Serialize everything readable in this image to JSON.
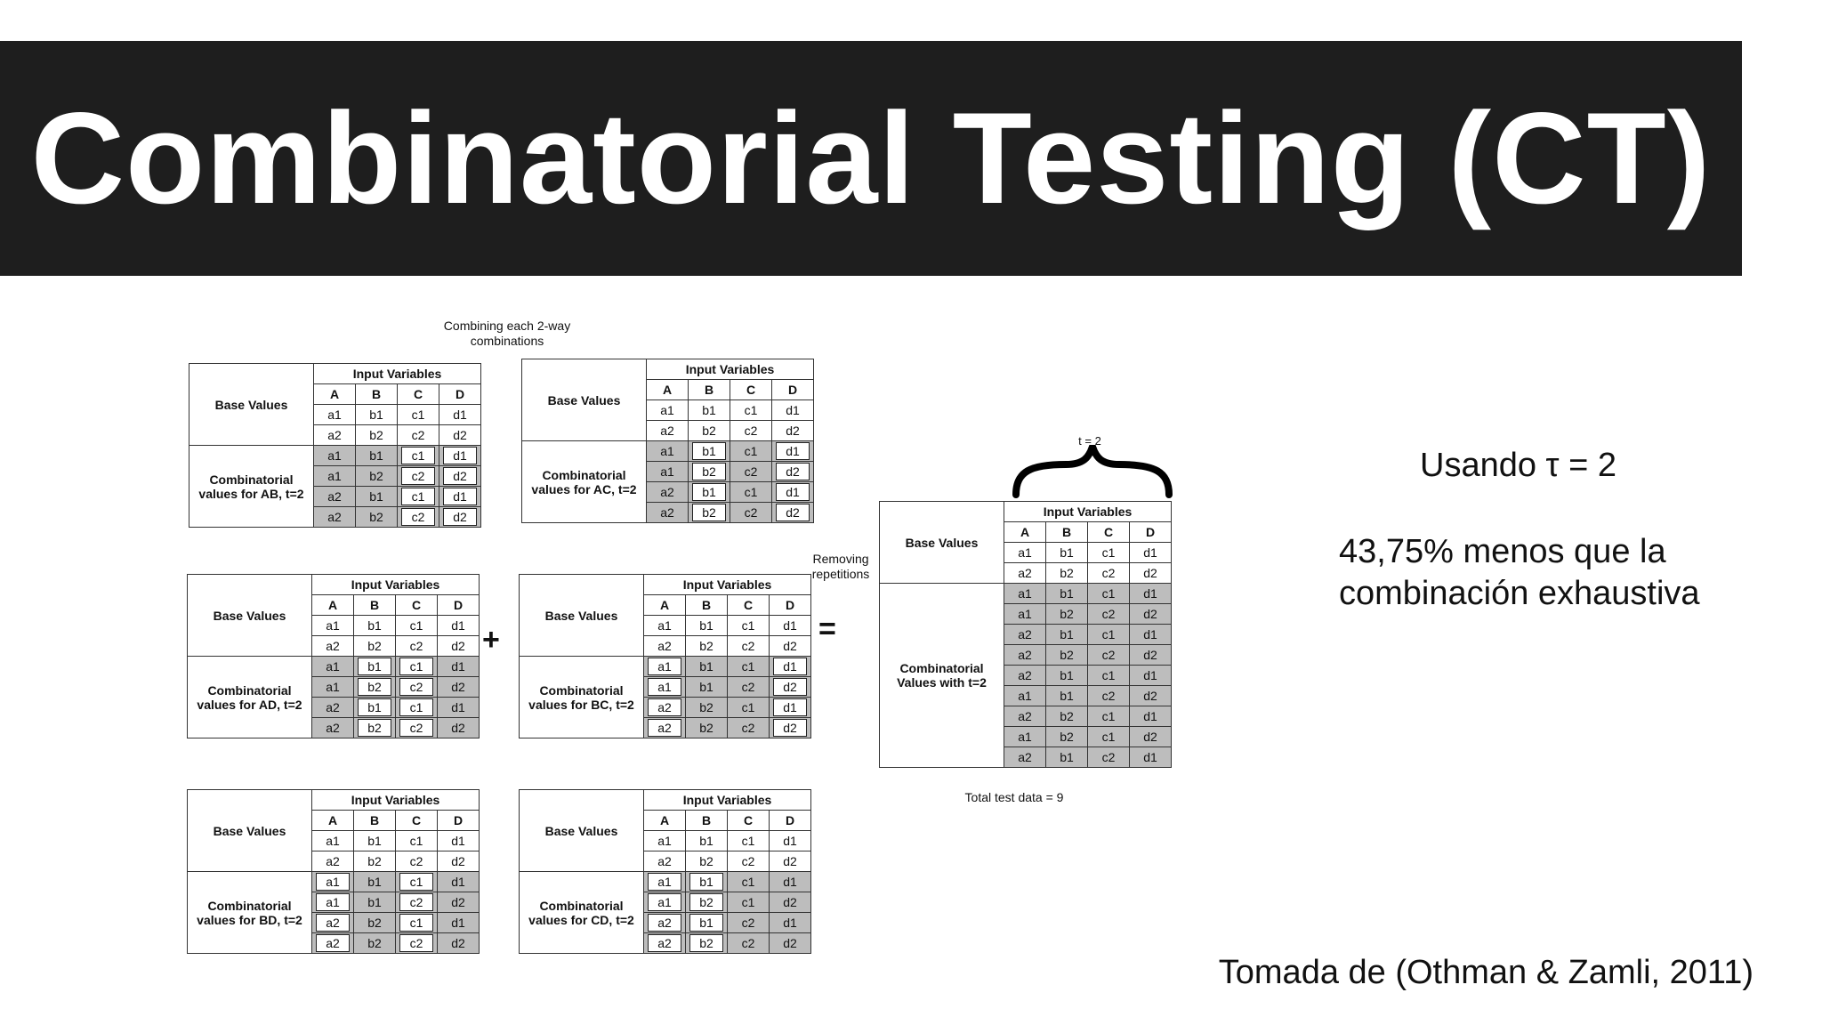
{
  "title": "Combinatorial Testing (CT)",
  "caption_combining": "Combining each 2-way\ncombinations",
  "caption_removing": "Removing\nrepetitions",
  "plus": "+",
  "equals": "=",
  "brace_label": "t = 2",
  "total_label": "Total test data = 9",
  "side": {
    "line1": "Usando τ = 2",
    "line2": "43,75% menos que la",
    "line3": "combinación exhaustiva"
  },
  "credit": "Tomada de (Othman & Zamli, 2011)",
  "common": {
    "base_values": "Base Values",
    "input_variables": "Input Variables",
    "cols": [
      "A",
      "B",
      "C",
      "D"
    ],
    "base_rows": [
      [
        "a1",
        "b1",
        "c1",
        "d1"
      ],
      [
        "a2",
        "b2",
        "c2",
        "d2"
      ]
    ]
  },
  "tables": [
    {
      "label": "Combinatorial values for AB, t=2",
      "rows": [
        [
          "a1",
          "b1",
          "c1",
          "d1"
        ],
        [
          "a1",
          "b2",
          "c2",
          "d2"
        ],
        [
          "a2",
          "b1",
          "c1",
          "d1"
        ],
        [
          "a2",
          "b2",
          "c2",
          "d2"
        ]
      ],
      "boxed": [
        2,
        3
      ]
    },
    {
      "label": "Combinatorial values for AC, t=2",
      "rows": [
        [
          "a1",
          "b1",
          "c1",
          "d1"
        ],
        [
          "a1",
          "b2",
          "c2",
          "d2"
        ],
        [
          "a2",
          "b1",
          "c1",
          "d1"
        ],
        [
          "a2",
          "b2",
          "c2",
          "d2"
        ]
      ],
      "boxed": [
        1,
        3
      ]
    },
    {
      "label": "Combinatorial values for AD, t=2",
      "rows": [
        [
          "a1",
          "b1",
          "c1",
          "d1"
        ],
        [
          "a1",
          "b2",
          "c2",
          "d2"
        ],
        [
          "a2",
          "b1",
          "c1",
          "d1"
        ],
        [
          "a2",
          "b2",
          "c2",
          "d2"
        ]
      ],
      "boxed": [
        1,
        2
      ]
    },
    {
      "label": "Combinatorial values for BC, t=2",
      "rows": [
        [
          "a1",
          "b1",
          "c1",
          "d1"
        ],
        [
          "a1",
          "b1",
          "c2",
          "d2"
        ],
        [
          "a2",
          "b2",
          "c1",
          "d1"
        ],
        [
          "a2",
          "b2",
          "c2",
          "d2"
        ]
      ],
      "boxed": [
        0,
        3
      ]
    },
    {
      "label": "Combinatorial values for BD, t=2",
      "rows": [
        [
          "a1",
          "b1",
          "c1",
          "d1"
        ],
        [
          "a1",
          "b1",
          "c2",
          "d2"
        ],
        [
          "a2",
          "b2",
          "c1",
          "d1"
        ],
        [
          "a2",
          "b2",
          "c2",
          "d2"
        ]
      ],
      "boxed": [
        0,
        2
      ]
    },
    {
      "label": "Combinatorial values for CD, t=2",
      "rows": [
        [
          "a1",
          "b1",
          "c1",
          "d1"
        ],
        [
          "a1",
          "b2",
          "c1",
          "d2"
        ],
        [
          "a2",
          "b1",
          "c2",
          "d1"
        ],
        [
          "a2",
          "b2",
          "c2",
          "d2"
        ]
      ],
      "boxed": [
        0,
        1
      ]
    },
    {
      "label": "Combinatorial Values with t=2",
      "rows": [
        [
          "a1",
          "b1",
          "c1",
          "d1"
        ],
        [
          "a1",
          "b2",
          "c2",
          "d2"
        ],
        [
          "a2",
          "b1",
          "c1",
          "d1"
        ],
        [
          "a2",
          "b2",
          "c2",
          "d2"
        ],
        [
          "a2",
          "b1",
          "c1",
          "d1"
        ],
        [
          "a1",
          "b1",
          "c2",
          "d2"
        ],
        [
          "a2",
          "b2",
          "c1",
          "d1"
        ],
        [
          "a1",
          "b2",
          "c1",
          "d2"
        ],
        [
          "a2",
          "b1",
          "c2",
          "d1"
        ]
      ],
      "boxed": []
    }
  ]
}
